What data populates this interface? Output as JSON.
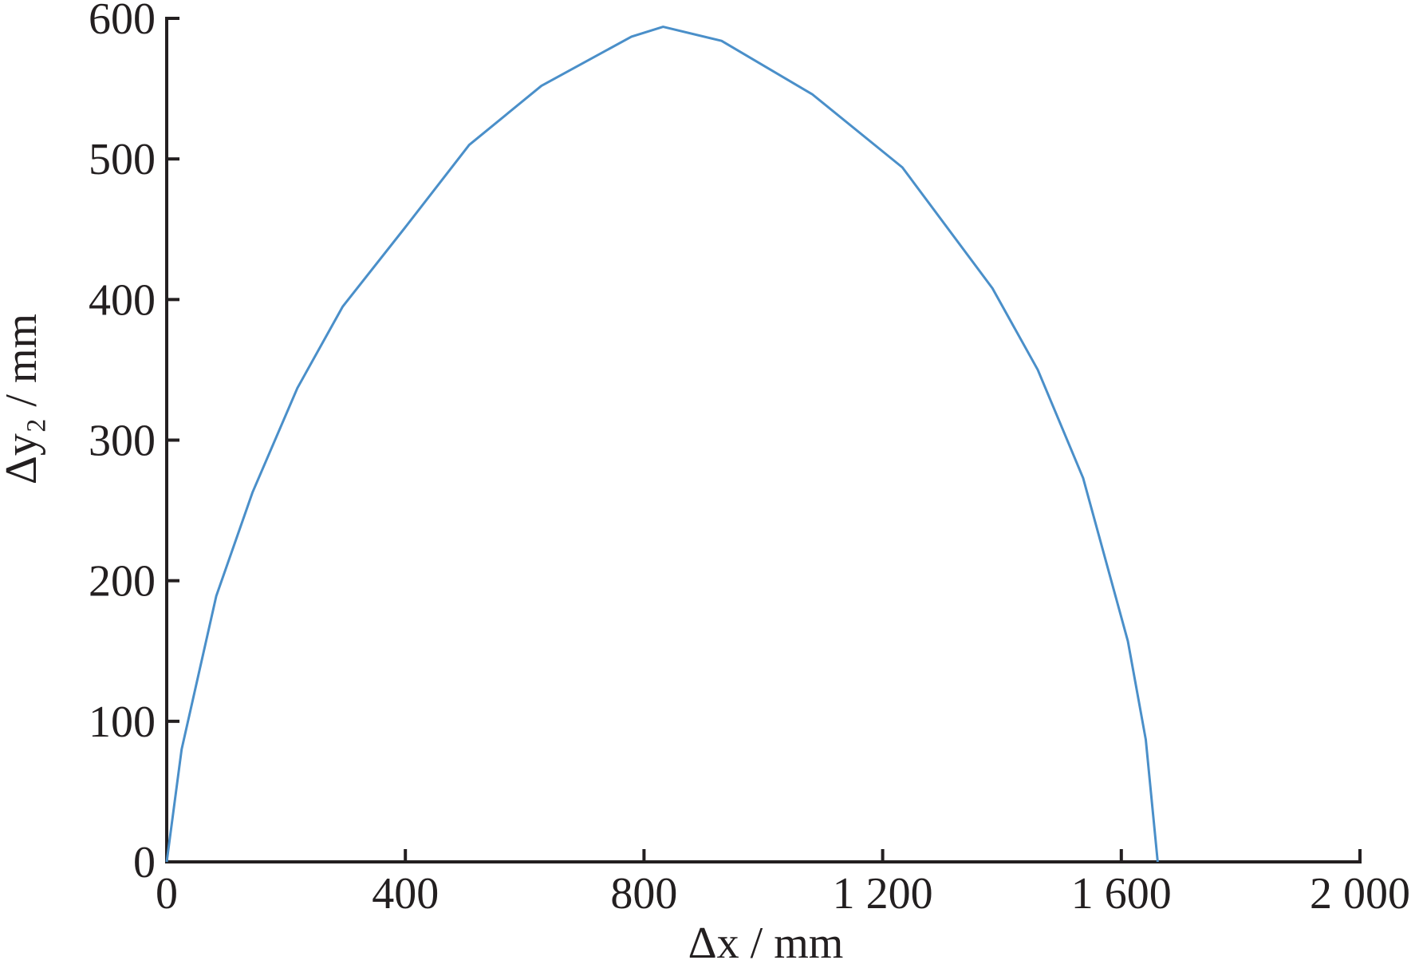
{
  "chart_data": {
    "type": "line",
    "x_label": "Δx / mm",
    "y_label": "Δy₂ / mm",
    "x": [
      0,
      25,
      83,
      144,
      219,
      295,
      401,
      507,
      628,
      779,
      832,
      930,
      1082,
      1233,
      1384,
      1460,
      1536,
      1611,
      1641,
      1661
    ],
    "values": [
      0,
      80,
      189,
      263,
      337,
      395,
      452,
      510,
      552,
      587,
      594,
      584,
      546,
      494,
      408,
      350,
      273,
      157,
      87,
      0
    ],
    "color": "#4a8fc9",
    "xlim": [
      0,
      2000
    ],
    "xticks": [
      0,
      400,
      800,
      {
        "value": 1200,
        "label": "1 200"
      },
      {
        "value": 1600,
        "label": "1 600"
      },
      {
        "value": 2000,
        "label": "2 000"
      }
    ],
    "ylim": [
      0,
      600
    ],
    "yticks": [
      0,
      100,
      200,
      300,
      400,
      500,
      600
    ]
  }
}
